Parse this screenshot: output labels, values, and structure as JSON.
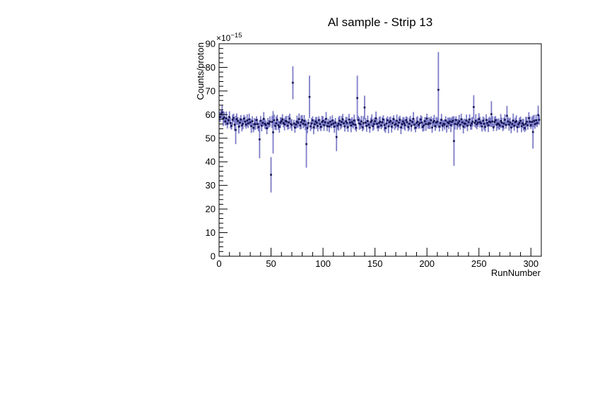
{
  "page": {
    "background_color": "#ffffff"
  },
  "chart_data": {
    "type": "scatter",
    "title": "Al sample - Strip 13",
    "xlabel": "RunNumber",
    "ylabel": "Counts/proton",
    "y_scale_label": {
      "base": "×10",
      "exponent": "−15"
    },
    "xlim": [
      0,
      310
    ],
    "ylim": [
      0,
      90
    ],
    "x_major_ticks": [
      0,
      50,
      100,
      150,
      200,
      250,
      300
    ],
    "x_minor_step": 10,
    "y_major_ticks": [
      0,
      10,
      20,
      30,
      40,
      50,
      60,
      70,
      80,
      90
    ],
    "y_minor_step": 2,
    "grid": false,
    "legend": "none",
    "frame_color": "#000000",
    "series": [
      {
        "name": "counts-per-proton",
        "marker_color": "#10104e",
        "error_bar_color": "#7d7dc8",
        "x": [
          1,
          2,
          3,
          4,
          5,
          6,
          7,
          8,
          9,
          10,
          11,
          12,
          13,
          14,
          15,
          16,
          17,
          18,
          19,
          20,
          21,
          22,
          23,
          24,
          25,
          26,
          27,
          28,
          29,
          30,
          31,
          32,
          33,
          34,
          35,
          36,
          37,
          38,
          39,
          40,
          41,
          42,
          43,
          44,
          45,
          46,
          47,
          48,
          49,
          50,
          51,
          52,
          53,
          54,
          55,
          56,
          57,
          58,
          59,
          60,
          61,
          62,
          63,
          64,
          65,
          66,
          67,
          68,
          69,
          70,
          71,
          72,
          73,
          74,
          75,
          76,
          77,
          78,
          79,
          80,
          81,
          82,
          83,
          84,
          85,
          86,
          87,
          88,
          89,
          90,
          91,
          92,
          93,
          94,
          95,
          96,
          97,
          98,
          99,
          100,
          101,
          102,
          103,
          104,
          105,
          106,
          107,
          108,
          109,
          110,
          111,
          112,
          113,
          114,
          115,
          116,
          117,
          118,
          119,
          120,
          121,
          122,
          123,
          124,
          125,
          126,
          127,
          128,
          129,
          130,
          131,
          132,
          133,
          134,
          135,
          136,
          137,
          138,
          139,
          140,
          141,
          142,
          143,
          144,
          145,
          146,
          147,
          148,
          149,
          150,
          151,
          152,
          153,
          154,
          155,
          156,
          157,
          158,
          159,
          160,
          161,
          162,
          163,
          164,
          165,
          166,
          167,
          168,
          169,
          170,
          171,
          172,
          173,
          174,
          175,
          176,
          177,
          178,
          179,
          180,
          181,
          182,
          183,
          184,
          185,
          186,
          187,
          188,
          189,
          190,
          191,
          192,
          193,
          194,
          195,
          196,
          197,
          198,
          199,
          200,
          201,
          202,
          203,
          204,
          205,
          206,
          207,
          208,
          209,
          210,
          211,
          212,
          213,
          214,
          215,
          216,
          217,
          218,
          219,
          220,
          221,
          222,
          223,
          224,
          225,
          226,
          227,
          228,
          229,
          230,
          231,
          232,
          233,
          234,
          235,
          236,
          237,
          238,
          239,
          240,
          241,
          242,
          243,
          244,
          245,
          246,
          247,
          248,
          249,
          250,
          251,
          252,
          253,
          254,
          255,
          256,
          257,
          258,
          259,
          260,
          261,
          262,
          263,
          264,
          265,
          266,
          267,
          268,
          269,
          270,
          271,
          272,
          273,
          274,
          275,
          276,
          277,
          278,
          279,
          280,
          281,
          282,
          283,
          284,
          285,
          286,
          287,
          288,
          289,
          290,
          291,
          292,
          293,
          294,
          295,
          296,
          297,
          298,
          299,
          300,
          301,
          302,
          303,
          304,
          305,
          306,
          307,
          308
        ],
        "y": [
          59.0,
          60.2,
          61.0,
          58.3,
          58.8,
          57.1,
          58.4,
          56.2,
          57.6,
          58.9,
          56.4,
          55.2,
          57.8,
          58.6,
          55.7,
          53.5,
          58.1,
          57.3,
          54.9,
          56.6,
          57.9,
          55.4,
          56.1,
          58.3,
          57.0,
          55.8,
          57.5,
          56.3,
          58.0,
          56.7,
          55.1,
          57.2,
          54.4,
          56.0,
          55.9,
          57.7,
          56.0,
          54.7,
          49.5,
          57.4,
          55.3,
          56.5,
          58.2,
          56.1,
          55.6,
          54.2,
          56.3,
          56.1,
          57.0,
          34.5,
          56.9,
          52.5,
          57.6,
          55.2,
          56.3,
          57.8,
          55.5,
          54.8,
          56.6,
          57.2,
          58.0,
          56.4,
          55.9,
          57.3,
          57.1,
          55.3,
          56.7,
          58.3,
          56.0,
          55.6,
          73.5,
          56.2,
          54.5,
          55.8,
          57.0,
          56.5,
          58.1,
          55.4,
          56.8,
          57.7,
          56.1,
          57.3,
          55.7,
          47.5,
          54.3,
          56.4,
          67.5,
          55.0,
          56.2,
          57.6,
          54.6,
          55.9,
          57.1,
          56.5,
          55.2,
          57.7,
          56.0,
          54.8,
          56.9,
          57.3,
          55.5,
          56.7,
          58.2,
          55.1,
          56.4,
          55.0,
          57.0,
          55.8,
          57.5,
          56.2,
          54.9,
          56.6,
          50.5,
          55.3,
          56.1,
          57.4,
          55.6,
          56.9,
          58.0,
          56.3,
          55.0,
          57.2,
          56.5,
          54.7,
          57.9,
          56.6,
          55.4,
          56.8,
          56.0,
          57.5,
          55.7,
          54.4,
          67.0,
          57.7,
          56.2,
          55.9,
          57.1,
          54.6,
          56.4,
          63.0,
          56.6,
          55.2,
          57.3,
          55.8,
          54.5,
          56.9,
          57.5,
          55.1,
          56.0,
          57.2,
          58.4,
          56.1,
          54.8,
          56.5,
          57.0,
          55.4,
          56.7,
          57.9,
          55.6,
          54.3,
          56.2,
          57.6,
          55.0,
          56.8,
          57.3,
          54.9,
          56.4,
          58.1,
          55.7,
          56.0,
          57.4,
          55.3,
          56.6,
          57.8,
          54.6,
          55.9,
          57.1,
          56.3,
          55.5,
          57.7,
          56.8,
          54.7,
          56.1,
          57.5,
          55.2,
          56.9,
          58.2,
          55.8,
          54.4,
          56.5,
          57.0,
          55.6,
          56.3,
          57.9,
          56.7,
          54.8,
          55.4,
          57.2,
          56.0,
          58.3,
          55.9,
          56.4,
          56.2,
          57.6,
          54.5,
          56.8,
          57.3,
          55.1,
          56.6,
          57.0,
          70.5,
          54.9,
          56.4,
          57.8,
          55.3,
          56.1,
          55.8,
          57.5,
          55.0,
          56.7,
          56.3,
          57.1,
          55.5,
          56.9,
          57.4,
          48.8,
          56.0,
          57.7,
          55.8,
          56.4,
          57.2,
          55.6,
          58.0,
          56.7,
          54.9,
          56.2,
          56.1,
          57.5,
          55.3,
          56.8,
          57.9,
          55.4,
          56.2,
          57.0,
          63.2,
          56.5,
          57.3,
          55.9,
          56.6,
          58.1,
          56.8,
          56.3,
          55.0,
          57.4,
          56.1,
          54.8,
          57.7,
          56.4,
          55.5,
          57.0,
          56.8,
          60.2,
          57.1,
          54.6,
          56.9,
          57.6,
          55.7,
          56.2,
          56.0,
          55.4,
          57.3,
          56.6,
          54.9,
          56.2,
          57.8,
          55.6,
          59.5,
          57.1,
          55.8,
          56.7,
          54.5,
          56.0,
          57.5,
          55.3,
          56.8,
          57.2,
          54.7,
          55.9,
          56.5,
          57.4,
          55.1,
          56.3,
          55.7,
          54.3,
          56.1,
          57.0,
          55.5,
          58.5,
          57.0,
          55.5,
          56.9,
          52.6,
          57.3,
          56.0,
          57.6,
          56.4,
          59.8,
          57.8
        ],
        "ey": [
          2.2,
          1.8,
          3.0,
          3.2,
          2.4,
          1.7,
          2.9,
          2.1,
          1.9,
          2.5,
          2.3,
          1.6,
          2.2,
          1.8,
          2.6,
          6.0,
          2.4,
          1.7,
          2.9,
          2.1,
          1.9,
          2.5,
          2.3,
          1.6,
          2.2,
          1.8,
          2.6,
          2.0,
          2.4,
          1.7,
          2.9,
          2.1,
          1.9,
          2.5,
          2.3,
          1.6,
          2.2,
          1.8,
          8.0,
          2.0,
          2.4,
          1.7,
          2.9,
          2.1,
          1.9,
          2.5,
          2.3,
          1.6,
          2.2,
          7.5,
          2.6,
          9.0,
          2.4,
          1.7,
          2.9,
          2.1,
          1.9,
          2.5,
          2.3,
          1.6,
          2.2,
          1.8,
          2.6,
          2.0,
          2.4,
          1.7,
          2.9,
          2.1,
          1.9,
          2.5,
          7.0,
          1.6,
          2.2,
          1.8,
          2.6,
          2.0,
          2.4,
          1.7,
          2.9,
          2.1,
          1.9,
          2.5,
          2.3,
          10.0,
          2.2,
          1.8,
          9.0,
          2.0,
          2.4,
          1.7,
          2.9,
          2.1,
          1.9,
          2.5,
          2.3,
          1.6,
          2.2,
          1.8,
          2.6,
          2.0,
          2.4,
          1.7,
          2.9,
          2.1,
          1.9,
          2.5,
          2.3,
          1.6,
          2.2,
          1.8,
          2.6,
          2.0,
          6.0,
          1.7,
          2.9,
          2.1,
          1.9,
          2.5,
          2.3,
          1.6,
          2.2,
          1.8,
          2.6,
          2.0,
          2.4,
          1.7,
          2.9,
          2.1,
          1.9,
          2.5,
          2.3,
          1.6,
          9.5,
          1.8,
          2.6,
          2.0,
          2.4,
          1.7,
          2.9,
          5.0,
          1.9,
          2.5,
          2.3,
          1.6,
          2.2,
          1.8,
          2.6,
          2.0,
          2.4,
          1.7,
          2.9,
          2.1,
          1.9,
          2.5,
          2.3,
          1.6,
          2.2,
          1.8,
          2.6,
          2.0,
          2.4,
          1.7,
          2.9,
          2.1,
          1.9,
          2.5,
          2.3,
          1.6,
          2.2,
          1.8,
          2.6,
          2.0,
          2.4,
          1.7,
          2.9,
          2.1,
          1.9,
          2.5,
          2.3,
          1.6,
          2.2,
          1.8,
          2.6,
          2.0,
          2.4,
          1.7,
          2.9,
          2.1,
          1.9,
          2.5,
          2.3,
          1.6,
          2.2,
          1.8,
          2.6,
          2.0,
          2.4,
          1.7,
          2.9,
          2.1,
          1.9,
          2.5,
          2.3,
          1.6,
          2.2,
          1.8,
          2.6,
          2.0,
          2.4,
          1.7,
          16.0,
          2.1,
          1.9,
          2.5,
          2.3,
          1.6,
          2.2,
          1.8,
          2.6,
          2.0,
          2.4,
          1.7,
          2.9,
          2.1,
          1.9,
          10.5,
          2.3,
          1.6,
          2.2,
          1.8,
          2.6,
          2.0,
          2.4,
          1.7,
          2.9,
          2.1,
          1.9,
          2.5,
          2.3,
          1.6,
          2.2,
          1.8,
          2.6,
          2.0,
          5.0,
          1.7,
          2.9,
          2.1,
          1.9,
          2.5,
          2.3,
          1.6,
          2.2,
          1.8,
          2.6,
          2.0,
          2.4,
          1.7,
          2.9,
          2.1,
          1.9,
          5.5,
          2.3,
          1.6,
          2.2,
          1.8,
          2.6,
          2.0,
          2.4,
          1.7,
          2.9,
          2.1,
          1.9,
          2.5,
          2.3,
          1.6,
          4.2,
          1.8,
          2.6,
          2.0,
          2.4,
          1.7,
          2.9,
          2.1,
          1.9,
          2.5,
          2.3,
          1.6,
          2.2,
          1.8,
          2.6,
          2.0,
          2.4,
          1.7,
          2.9,
          2.1,
          1.9,
          2.5,
          2.3,
          1.6,
          2.2,
          7.0,
          2.6,
          2.0,
          2.4,
          1.7,
          4.0,
          2.1
        ]
      }
    ]
  }
}
